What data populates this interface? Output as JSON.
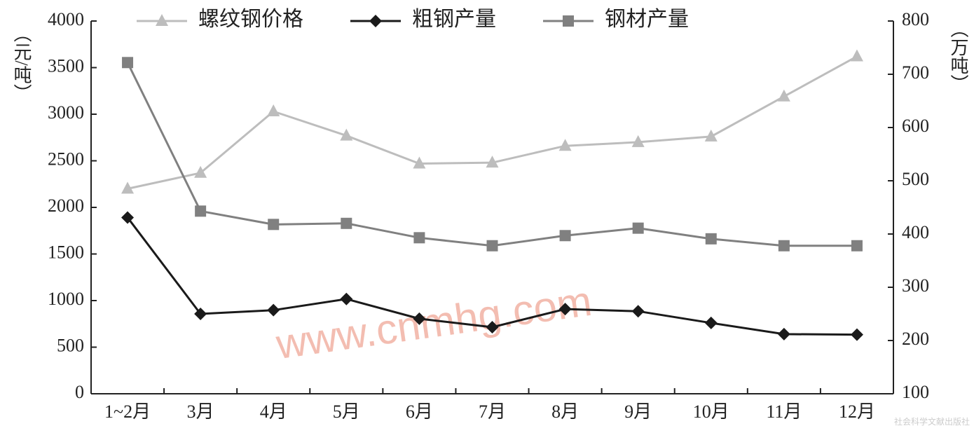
{
  "chart_data": {
    "type": "line",
    "categories": [
      "1~2月",
      "3月",
      "4月",
      "5月",
      "6月",
      "7月",
      "8月",
      "9月",
      "10月",
      "11月",
      "12月"
    ],
    "series": [
      {
        "name": "螺纹钢价格",
        "color": "#bdbdbd",
        "marker": "triangle",
        "values": [
          2200,
          2370,
          3030,
          2770,
          2470,
          2480,
          2660,
          2700,
          2760,
          3190,
          3620
        ]
      },
      {
        "name": "粗钢产量",
        "color": "#1a1a1a",
        "marker": "diamond",
        "axis": "y2",
        "values": [
          431,
          250,
          257,
          278,
          241,
          225,
          259,
          255,
          233,
          212,
          211
        ]
      },
      {
        "name": "钢材产量",
        "color": "#808080",
        "marker": "square",
        "axis": "y2",
        "values": [
          722,
          443,
          418,
          420,
          393,
          378,
          397,
          411,
          391,
          378,
          378
        ]
      }
    ],
    "ylabel": "（元/吨）",
    "y2label": "（万吨）",
    "ylim": [
      0,
      4000
    ],
    "yticks": [
      0,
      500,
      1000,
      1500,
      2000,
      2500,
      3000,
      3500,
      4000
    ],
    "y2lim": [
      100,
      800
    ],
    "y2ticks": [
      100,
      200,
      300,
      400,
      500,
      600,
      700,
      800
    ],
    "watermark": "www.cnmhg.com",
    "footer": "社会科学文献出版社"
  }
}
